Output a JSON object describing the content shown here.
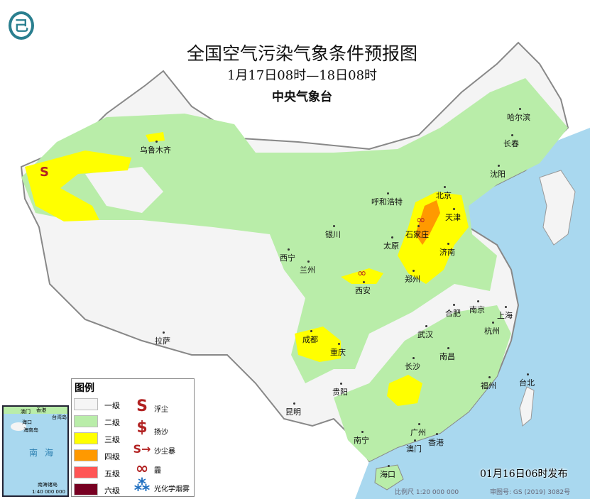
{
  "header": {
    "title": "全国空气污染气象条件预报图",
    "period": "1月17日08时—18日08时",
    "issuer": "中央气象台",
    "logo_icon": "cma-dragon-logo"
  },
  "colors": {
    "sea": "#a9d8ef",
    "land": "#f4f4f4",
    "level1": "#f5f5f5",
    "level2": "#b9eda9",
    "level3": "#ffff00",
    "level4": "#ff9900",
    "level5": "#ff5555",
    "level6": "#770022",
    "symbol": "#b22222",
    "smog": "#1f6fc0"
  },
  "cities": [
    "乌鲁木齐",
    "哈尔滨",
    "长春",
    "沈阳",
    "呼和浩特",
    "北京",
    "天津",
    "石家庄",
    "太原",
    "济南",
    "银川",
    "西宁",
    "兰州",
    "郑州",
    "西安",
    "合肥",
    "南京",
    "上海",
    "杭州",
    "武汉",
    "成都",
    "重庆",
    "拉萨",
    "南昌",
    "长沙",
    "贵阳",
    "福州",
    "台北",
    "昆明",
    "南宁",
    "广州",
    "香港",
    "澳门",
    "海口"
  ],
  "legend": {
    "title": "图例",
    "levels": [
      "一级",
      "二级",
      "三级",
      "四级",
      "五级",
      "六级"
    ],
    "symbols": [
      {
        "label": "浮尘",
        "icon": "floating-dust-s-icon",
        "glyph": "S"
      },
      {
        "label": "扬沙",
        "icon": "blowing-sand-icon",
        "glyph": "$"
      },
      {
        "label": "沙尘暴",
        "icon": "sandstorm-icon",
        "glyph": "S→"
      },
      {
        "label": "霾",
        "icon": "haze-infinity-icon",
        "glyph": "∞"
      },
      {
        "label": "光化学烟雾",
        "icon": "photochemical-smog-icon",
        "glyph": "⁂"
      }
    ]
  },
  "inset": {
    "sea_label": "南海",
    "islands_label": "南海诸岛",
    "scale": "1:40 000 000",
    "hainan": "海南岛",
    "haikou": "海口",
    "taiwan": "台湾岛",
    "macau": "澳门",
    "hongkong": "香港"
  },
  "footer": {
    "issued": "01月16日06时发布",
    "scale": "比例尺 1:20 000 000",
    "map_no": "审图号: GS (2019) 3082号"
  }
}
